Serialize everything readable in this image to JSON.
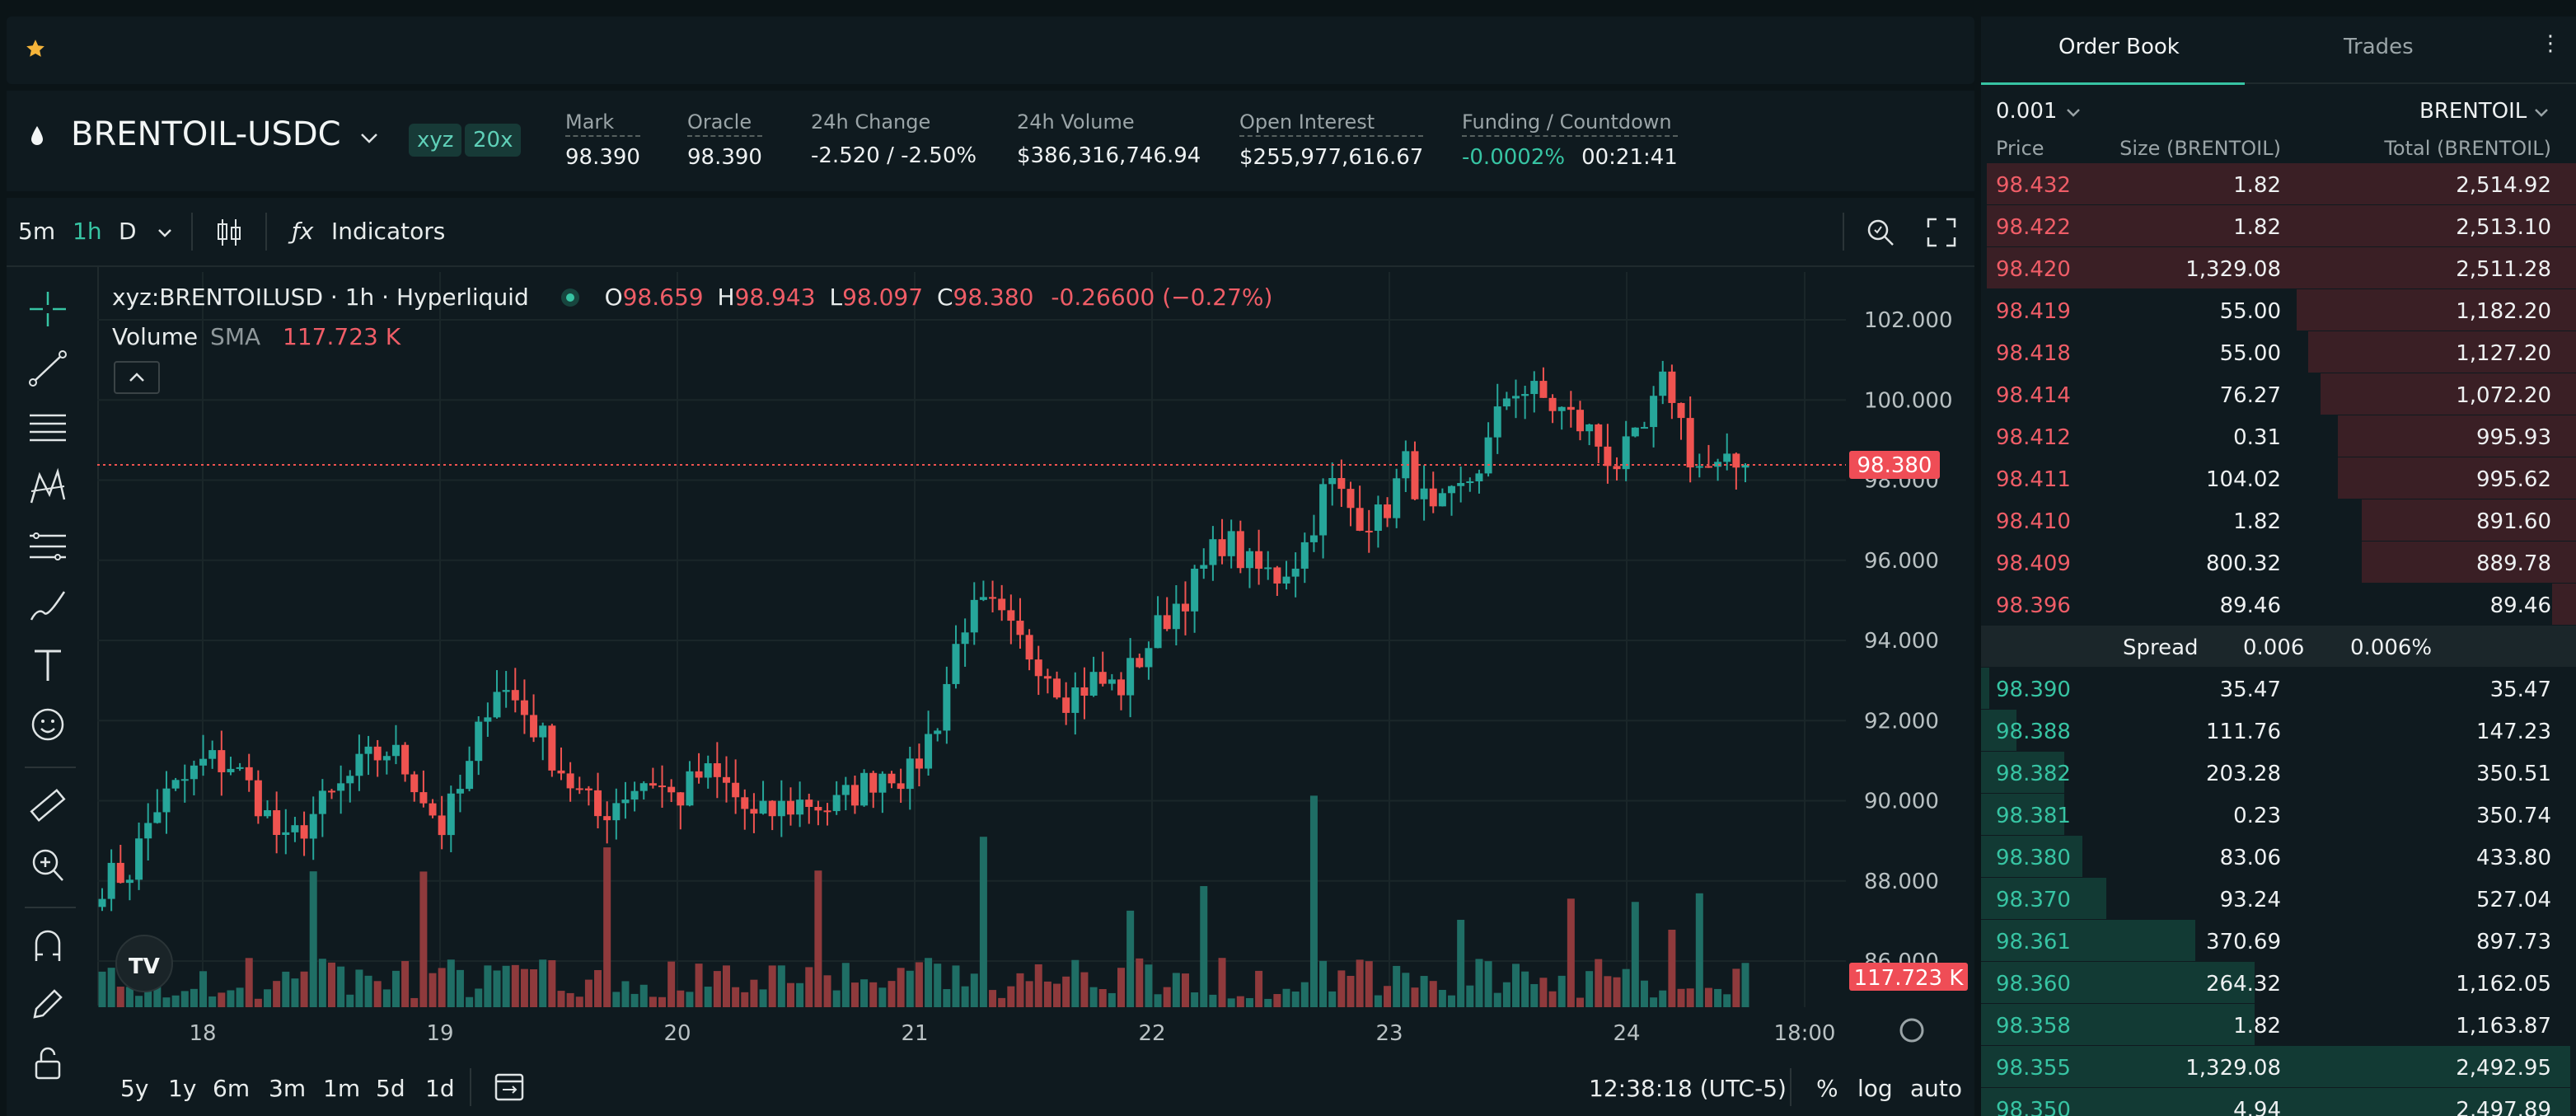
{
  "header": {
    "symbol": "BRENTOIL-USDC",
    "badges": [
      "xyz",
      "20x"
    ],
    "stats": [
      {
        "label": "Mark",
        "value": "98.390",
        "tone": "neutral",
        "underline": true
      },
      {
        "label": "Oracle",
        "value": "98.390",
        "tone": "neutral",
        "underline": true
      },
      {
        "label": "24h Change",
        "value": "-2.520 / -2.50%",
        "tone": "red",
        "underline": false
      },
      {
        "label": "24h Volume",
        "value": "$386,316,746.94",
        "tone": "neutral",
        "underline": false
      },
      {
        "label": "Open Interest",
        "value": "$255,977,616.67",
        "tone": "neutral",
        "underline": true
      },
      {
        "label": "Funding / Countdown",
        "value": "-0.0002%",
        "value2": "00:21:41",
        "tone": "green",
        "underline": true
      }
    ]
  },
  "toolbar": {
    "intervals": [
      "5m",
      "1h",
      "D"
    ],
    "active_interval": "1h",
    "indicators_label": "Indicators"
  },
  "legend": {
    "title": "xyz:BRENTOILUSD · 1h · Hyperliquid",
    "o_label": "O",
    "o": "98.659",
    "h_label": "H",
    "h": "98.943",
    "l_label": "L",
    "l": "98.097",
    "c_label": "C",
    "c": "98.380",
    "change": "-0.26600 (−0.27%)",
    "volume_label": "Volume",
    "sma_label": "SMA",
    "volume_value": "117.723 K"
  },
  "chart_data": {
    "type": "candlestick",
    "y_ticks": [
      "102.000",
      "100.000",
      "98.000",
      "96.000",
      "94.000",
      "92.000",
      "90.000",
      "88.000",
      "86.000"
    ],
    "ylim": [
      85.6,
      102.4
    ],
    "x_ticks": [
      "18",
      "19",
      "20",
      "21",
      "22",
      "23",
      "24",
      "18:00"
    ],
    "last_price_label": "98.380",
    "volume_label": "117.723 K",
    "candles_close_anchor": [
      88.0,
      88.2,
      89.8,
      90.4,
      91.0,
      90.9,
      90.0,
      88.8,
      89.6,
      90.2,
      90.9,
      91.3,
      90.5,
      89.3,
      90.6,
      93.0,
      92.4,
      91.4,
      90.4,
      89.6,
      90.2,
      90.6,
      90.0,
      90.7,
      90.3,
      89.5,
      89.8,
      90.0,
      89.8,
      90.3,
      90.8,
      90.6,
      92.0,
      94.5,
      94.8,
      94.0,
      93.5,
      92.6,
      93.0,
      92.8,
      93.8,
      94.8,
      95.5,
      96.6,
      95.8,
      95.6,
      96.2,
      98.0,
      97.2,
      97.0,
      98.4,
      97.0,
      97.6,
      98.6,
      100.4,
      100.1,
      99.7,
      99.2,
      98.4,
      99.0,
      100.6,
      98.4,
      98.2,
      98.4
    ]
  },
  "bottom": {
    "ranges": [
      "5y",
      "1y",
      "6m",
      "3m",
      "1m",
      "5d",
      "1d"
    ],
    "time": "12:38:18 (UTC-5)",
    "pct": "%",
    "log": "log",
    "auto": "auto"
  },
  "orderbook": {
    "tabs": [
      "Order Book",
      "Trades"
    ],
    "tick": "0.001",
    "asset": "BRENTOIL",
    "columns": [
      "Price",
      "Size (BRENTOIL)",
      "Total (BRENTOIL)"
    ],
    "asks": [
      {
        "price": "98.432",
        "size": "1.82",
        "total": "2,514.92",
        "depth": 0.99
      },
      {
        "price": "98.422",
        "size": "1.82",
        "total": "2,513.10",
        "depth": 0.99
      },
      {
        "price": "98.420",
        "size": "1,329.08",
        "total": "2,511.28",
        "depth": 0.99
      },
      {
        "price": "98.419",
        "size": "55.00",
        "total": "1,182.20",
        "depth": 0.47
      },
      {
        "price": "98.418",
        "size": "55.00",
        "total": "1,127.20",
        "depth": 0.45
      },
      {
        "price": "98.414",
        "size": "76.27",
        "total": "1,072.20",
        "depth": 0.43
      },
      {
        "price": "98.412",
        "size": "0.31",
        "total": "995.93",
        "depth": 0.4
      },
      {
        "price": "98.411",
        "size": "104.02",
        "total": "995.62",
        "depth": 0.4
      },
      {
        "price": "98.410",
        "size": "1.82",
        "total": "891.60",
        "depth": 0.36
      },
      {
        "price": "98.409",
        "size": "800.32",
        "total": "889.78",
        "depth": 0.36
      },
      {
        "price": "98.396",
        "size": "89.46",
        "total": "89.46",
        "depth": 0.04
      }
    ],
    "spread": {
      "label": "Spread",
      "value": "0.006",
      "pct": "0.006%"
    },
    "bids": [
      {
        "price": "98.390",
        "size": "35.47",
        "total": "35.47",
        "depth": 0.014
      },
      {
        "price": "98.388",
        "size": "111.76",
        "total": "147.23",
        "depth": 0.06
      },
      {
        "price": "98.382",
        "size": "203.28",
        "total": "350.51",
        "depth": 0.14
      },
      {
        "price": "98.381",
        "size": "0.23",
        "total": "350.74",
        "depth": 0.14
      },
      {
        "price": "98.380",
        "size": "83.06",
        "total": "433.80",
        "depth": 0.17
      },
      {
        "price": "98.370",
        "size": "93.24",
        "total": "527.04",
        "depth": 0.21
      },
      {
        "price": "98.361",
        "size": "370.69",
        "total": "897.73",
        "depth": 0.36
      },
      {
        "price": "98.360",
        "size": "264.32",
        "total": "1,162.05",
        "depth": 0.46
      },
      {
        "price": "98.358",
        "size": "1.82",
        "total": "1,163.87",
        "depth": 0.46
      },
      {
        "price": "98.355",
        "size": "1,329.08",
        "total": "2,492.95",
        "depth": 0.99
      },
      {
        "price": "98.350",
        "size": "4.94",
        "total": "2,497.89",
        "depth": 0.99
      }
    ]
  },
  "colors": {
    "up": "#26a69a",
    "down": "#ef5350",
    "accent": "#37c4a3",
    "bg": "#0f1a1f",
    "red_text": "#ef5d67"
  }
}
